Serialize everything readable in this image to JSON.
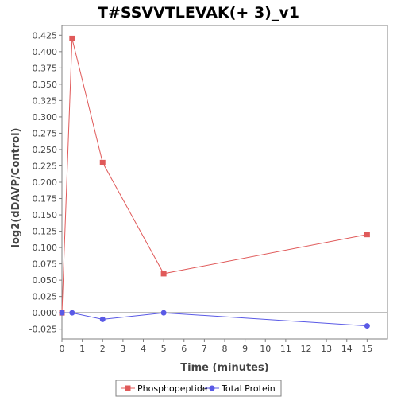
{
  "chart_data": {
    "type": "line",
    "title": "T#SSVVTLEVAK(+ 3)_v1",
    "xlabel": "Time (minutes)",
    "ylabel": "log2(dDAVP/Control)",
    "xlim": [
      0,
      16
    ],
    "ylim": [
      -0.04,
      0.44
    ],
    "x_ticks": [
      0,
      1,
      2,
      3,
      4,
      5,
      6,
      7,
      8,
      9,
      10,
      11,
      12,
      13,
      14,
      15
    ],
    "y_ticks": [
      -0.025,
      0.0,
      0.025,
      0.05,
      0.075,
      0.1,
      0.125,
      0.15,
      0.175,
      0.2,
      0.225,
      0.25,
      0.275,
      0.3,
      0.325,
      0.35,
      0.375,
      0.4,
      0.425
    ],
    "y_tick_labels": [
      "-0.025",
      "0.000",
      "0.025",
      "0.050",
      "0.075",
      "0.100",
      "0.125",
      "0.150",
      "0.175",
      "0.200",
      "0.225",
      "0.250",
      "0.275",
      "0.300",
      "0.325",
      "0.350",
      "0.375",
      "0.400",
      "0.425"
    ],
    "zero_line": true,
    "grid": false,
    "legend_position": "bottom",
    "series": [
      {
        "name": "Phosphopeptide",
        "color": "#e05a5a",
        "marker": "square",
        "x": [
          0,
          0.5,
          2,
          5,
          15
        ],
        "y": [
          0.0,
          0.42,
          0.23,
          0.06,
          0.12
        ]
      },
      {
        "name": "Total Protein",
        "color": "#5a5ae6",
        "marker": "circle",
        "x": [
          0,
          0.5,
          2,
          5,
          15
        ],
        "y": [
          0.0,
          0.0,
          -0.01,
          0.0,
          -0.02
        ]
      }
    ]
  }
}
